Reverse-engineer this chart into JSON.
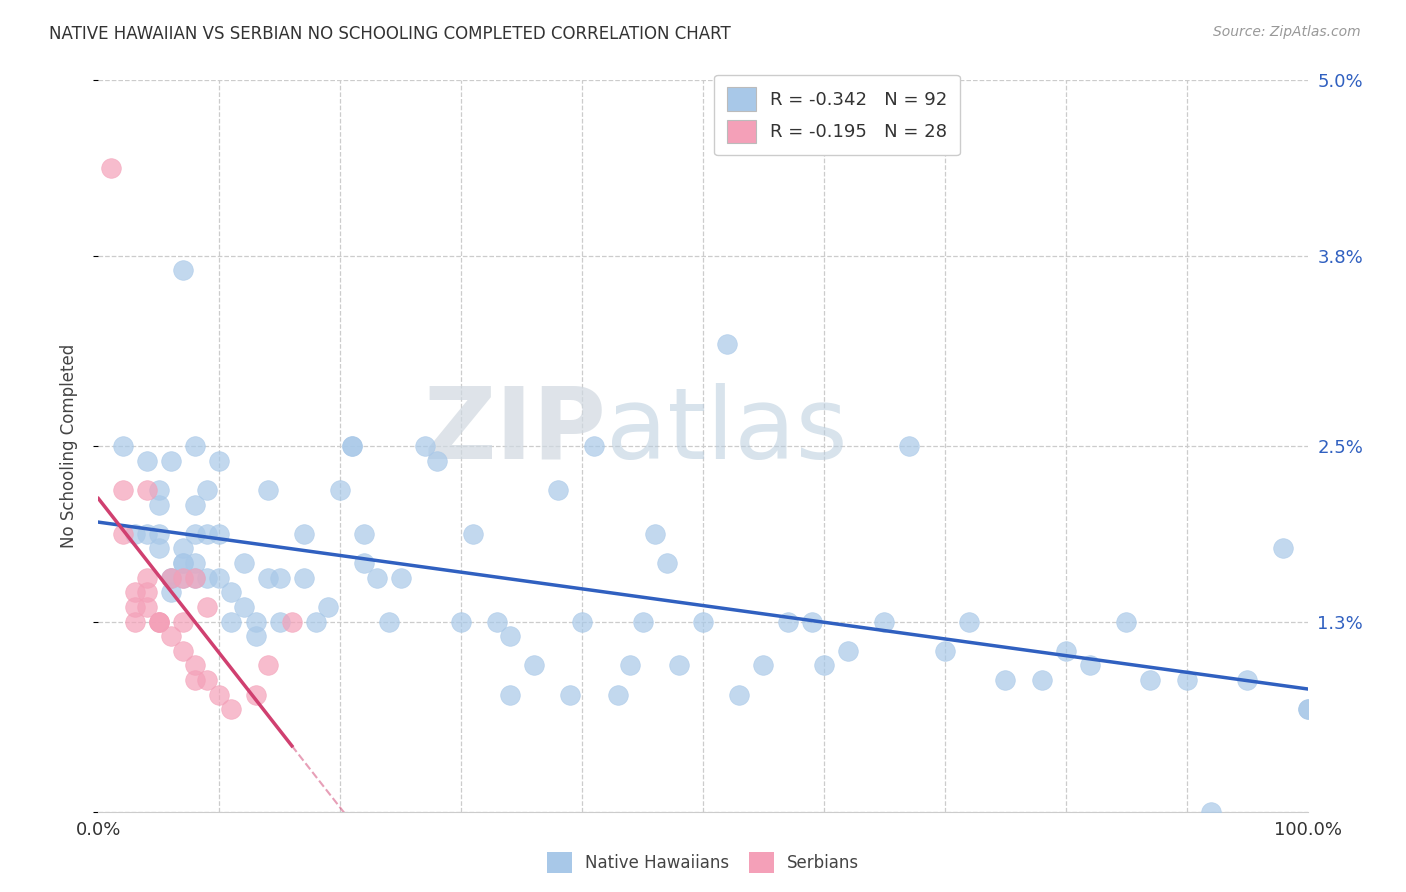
{
  "title": "NATIVE HAWAIIAN VS SERBIAN NO SCHOOLING COMPLETED CORRELATION CHART",
  "source": "Source: ZipAtlas.com",
  "ylabel": "No Schooling Completed",
  "xlim": [
    0,
    1.0
  ],
  "ylim": [
    0,
    0.05
  ],
  "yticks": [
    0.0,
    0.013,
    0.025,
    0.038,
    0.05
  ],
  "ytick_labels_right": [
    "",
    "1.3%",
    "2.5%",
    "3.8%",
    "5.0%"
  ],
  "xtick_labels": [
    "0.0%",
    "",
    "",
    "",
    "",
    "",
    "",
    "",
    "",
    "",
    "100.0%"
  ],
  "legend_r1": "R = -0.342   N = 92",
  "legend_r2": "R = -0.195   N = 28",
  "blue_color": "#a8c8e8",
  "pink_color": "#f4a0b8",
  "blue_line_color": "#3060c0",
  "pink_line_color": "#d04070",
  "watermark_zip": "ZIP",
  "watermark_atlas": "atlas",
  "grid_color": "#cccccc",
  "native_hawaiian_x": [
    0.02,
    0.03,
    0.04,
    0.04,
    0.05,
    0.05,
    0.05,
    0.05,
    0.06,
    0.06,
    0.06,
    0.06,
    0.07,
    0.07,
    0.07,
    0.07,
    0.07,
    0.08,
    0.08,
    0.08,
    0.08,
    0.08,
    0.09,
    0.09,
    0.09,
    0.1,
    0.1,
    0.1,
    0.11,
    0.11,
    0.12,
    0.12,
    0.13,
    0.13,
    0.14,
    0.14,
    0.15,
    0.15,
    0.17,
    0.17,
    0.18,
    0.19,
    0.2,
    0.21,
    0.21,
    0.22,
    0.22,
    0.23,
    0.24,
    0.25,
    0.27,
    0.28,
    0.3,
    0.31,
    0.33,
    0.34,
    0.34,
    0.36,
    0.38,
    0.39,
    0.4,
    0.41,
    0.43,
    0.44,
    0.45,
    0.46,
    0.47,
    0.48,
    0.5,
    0.52,
    0.53,
    0.55,
    0.57,
    0.59,
    0.6,
    0.62,
    0.65,
    0.67,
    0.7,
    0.72,
    0.75,
    0.78,
    0.8,
    0.82,
    0.85,
    0.87,
    0.9,
    0.92,
    0.95,
    0.98,
    1.0,
    1.0
  ],
  "native_hawaiian_y": [
    0.025,
    0.019,
    0.024,
    0.019,
    0.019,
    0.021,
    0.022,
    0.018,
    0.016,
    0.015,
    0.016,
    0.024,
    0.017,
    0.016,
    0.017,
    0.018,
    0.037,
    0.016,
    0.017,
    0.019,
    0.021,
    0.025,
    0.016,
    0.019,
    0.022,
    0.016,
    0.019,
    0.024,
    0.013,
    0.015,
    0.014,
    0.017,
    0.012,
    0.013,
    0.016,
    0.022,
    0.013,
    0.016,
    0.016,
    0.019,
    0.013,
    0.014,
    0.022,
    0.025,
    0.025,
    0.019,
    0.017,
    0.016,
    0.013,
    0.016,
    0.025,
    0.024,
    0.013,
    0.019,
    0.013,
    0.008,
    0.012,
    0.01,
    0.022,
    0.008,
    0.013,
    0.025,
    0.008,
    0.01,
    0.013,
    0.019,
    0.017,
    0.01,
    0.013,
    0.032,
    0.008,
    0.01,
    0.013,
    0.013,
    0.01,
    0.011,
    0.013,
    0.025,
    0.011,
    0.013,
    0.009,
    0.009,
    0.011,
    0.01,
    0.013,
    0.009,
    0.009,
    0.0,
    0.009,
    0.018,
    0.007,
    0.007
  ],
  "serbian_x": [
    0.01,
    0.02,
    0.02,
    0.03,
    0.03,
    0.03,
    0.04,
    0.04,
    0.04,
    0.04,
    0.05,
    0.05,
    0.05,
    0.06,
    0.06,
    0.07,
    0.07,
    0.07,
    0.08,
    0.08,
    0.08,
    0.09,
    0.09,
    0.1,
    0.11,
    0.13,
    0.14,
    0.16
  ],
  "serbian_y": [
    0.044,
    0.019,
    0.022,
    0.013,
    0.014,
    0.015,
    0.014,
    0.015,
    0.016,
    0.022,
    0.013,
    0.013,
    0.013,
    0.012,
    0.016,
    0.011,
    0.013,
    0.016,
    0.009,
    0.01,
    0.016,
    0.014,
    0.009,
    0.008,
    0.007,
    0.008,
    0.01,
    0.013
  ]
}
